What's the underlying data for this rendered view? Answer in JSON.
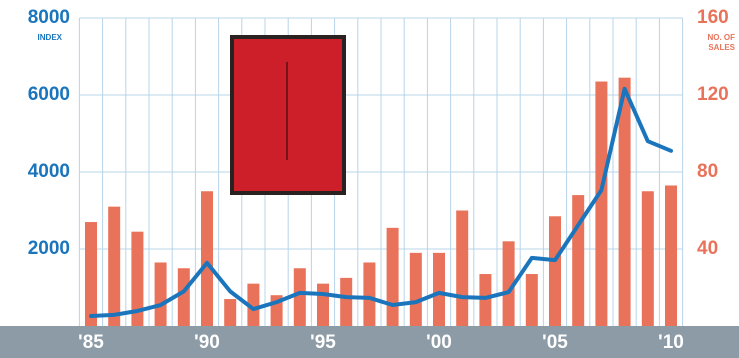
{
  "chart_data": {
    "type": "combo",
    "y_label": "INDEX",
    "y2_label": [
      "NO. OF",
      "SALES"
    ],
    "categories": [
      "'85",
      null,
      null,
      null,
      null,
      "'90",
      null,
      null,
      null,
      null,
      "'95",
      null,
      null,
      null,
      null,
      "'00",
      null,
      null,
      null,
      null,
      "'05",
      null,
      null,
      null,
      null,
      "'10"
    ],
    "series": [
      {
        "type": "bar",
        "axis": "y2",
        "color": "#e8735a",
        "values": [
          54,
          62,
          49,
          33,
          30,
          70,
          14,
          22,
          16,
          30,
          22,
          25,
          33,
          51,
          38,
          38,
          60,
          27,
          44,
          27,
          57,
          68,
          127,
          129,
          70,
          73
        ]
      },
      {
        "type": "line",
        "color": "#1a75bc",
        "values": [
          260,
          290,
          390,
          545,
          900,
          1640,
          900,
          440,
          620,
          860,
          830,
          750,
          730,
          545,
          620,
          860,
          750,
          730,
          880,
          1770,
          1710,
          2620,
          3530,
          6160,
          4800,
          4550
        ]
      }
    ],
    "ylim": [
      0,
      8000
    ],
    "yticks": [
      2000,
      4000,
      6000,
      8000
    ],
    "y_color": "#1a75bc",
    "y2lim": [
      0,
      160
    ],
    "y2ticks": [
      40,
      80,
      120,
      160
    ],
    "y2_color": "#e8735a",
    "grid": true
  }
}
